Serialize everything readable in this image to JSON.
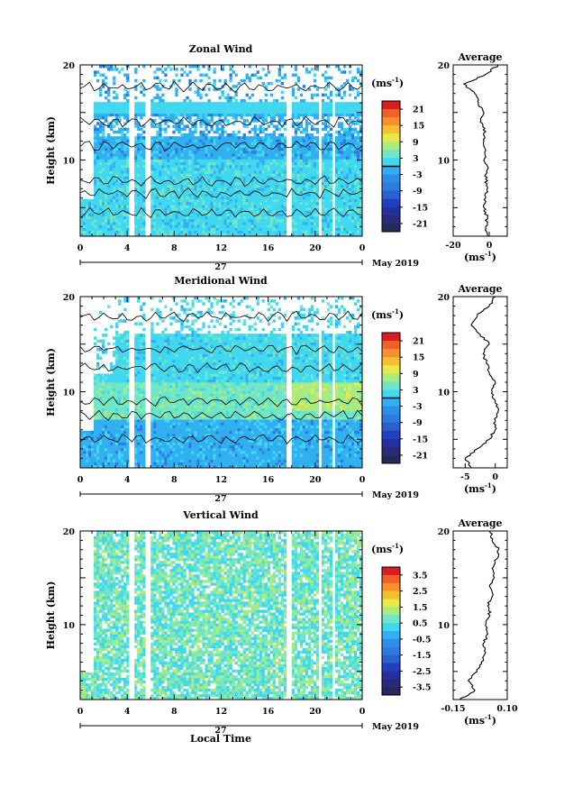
{
  "chart_data": [
    {
      "type": "heatmap",
      "title": "Zonal Wind",
      "ylabel": "Height (km)",
      "xlabel": "",
      "xticks": [
        "0",
        "4",
        "8",
        "12",
        "16",
        "20",
        "0"
      ],
      "yticks": [
        "20",
        "10"
      ],
      "date_label": "27",
      "month_label": "May 2019",
      "xlim": [
        0,
        24
      ],
      "ylim": [
        2,
        20
      ],
      "colorbar": {
        "unit": "(ms",
        "unit_exp": "-1",
        "unit_close": ")",
        "ticks": [
          "21",
          "15",
          "9",
          "3",
          "-3",
          "-9",
          "-15",
          "-21"
        ],
        "range": [
          -24,
          24
        ],
        "zero_line": 0
      },
      "profile": {
        "title": "Average",
        "xlabel": "(ms",
        "xlabel_exp": "-1",
        "xlabel_close": ")",
        "xticks": [
          "-20",
          "0"
        ],
        "yticks": [
          "20",
          "10"
        ],
        "xlim": [
          -20,
          10
        ],
        "ylim": [
          2,
          20
        ],
        "heights": [
          2,
          3,
          4,
          5,
          6,
          7,
          8,
          9,
          10,
          11,
          12,
          13,
          14,
          15,
          16,
          17,
          18,
          19,
          20
        ],
        "values": [
          -1,
          -2,
          -1,
          -3,
          -2,
          -1,
          -2,
          -1,
          -3,
          -2,
          -3,
          -2,
          -5,
          -3,
          -6,
          -8,
          -14,
          -2,
          5
        ]
      }
    },
    {
      "type": "heatmap",
      "title": "Meridional Wind",
      "ylabel": "Height (km)",
      "xlabel": "",
      "xticks": [
        "0",
        "4",
        "8",
        "12",
        "16",
        "20",
        "0"
      ],
      "yticks": [
        "20",
        "10"
      ],
      "date_label": "27",
      "month_label": "May 2019",
      "xlim": [
        0,
        24
      ],
      "ylim": [
        2,
        20
      ],
      "colorbar": {
        "unit": "(ms",
        "unit_exp": "-1",
        "unit_close": ")",
        "ticks": [
          "21",
          "15",
          "9",
          "3",
          "-3",
          "-9",
          "-15",
          "-21"
        ],
        "range": [
          -24,
          24
        ],
        "zero_line": 0
      },
      "profile": {
        "title": "Average",
        "xlabel": "(ms",
        "xlabel_exp": "-1",
        "xlabel_close": ")",
        "xticks": [
          "-5",
          "0"
        ],
        "yticks": [
          "20",
          "10"
        ],
        "xlim": [
          -7,
          2
        ],
        "ylim": [
          2,
          20
        ],
        "heights": [
          2,
          3,
          4,
          5,
          6,
          7,
          8,
          9,
          10,
          11,
          12,
          13,
          14,
          15,
          16,
          17,
          18,
          19,
          20
        ],
        "values": [
          -4,
          -5,
          -3,
          -1,
          0,
          0,
          0.5,
          0,
          -0.5,
          0,
          -1,
          -1.5,
          -2,
          -1,
          -2.5,
          -4,
          -3,
          -1,
          0
        ]
      }
    },
    {
      "type": "heatmap",
      "title": "Vertical Wind",
      "ylabel": "Height (km)",
      "xlabel": "Local Time",
      "xticks": [
        "0",
        "4",
        "8",
        "12",
        "16",
        "20",
        "0"
      ],
      "yticks": [
        "20",
        "10"
      ],
      "date_label": "27",
      "month_label": "May 2019",
      "xlim": [
        0,
        24
      ],
      "ylim": [
        2,
        20
      ],
      "colorbar": {
        "unit": "(ms",
        "unit_exp": "-1",
        "unit_close": ")",
        "ticks": [
          "3.5",
          "2.5",
          "1.5",
          "0.5",
          "-0.5",
          "-1.5",
          "-2.5",
          "-3.5"
        ],
        "range": [
          -4,
          4
        ]
      },
      "profile": {
        "title": "Average",
        "xlabel": "(ms",
        "xlabel_exp": "-1",
        "xlabel_close": ")",
        "xticks": [
          "-0.15",
          "0.10"
        ],
        "yticks": [
          "20",
          "10"
        ],
        "xlim": [
          -0.15,
          0.1
        ],
        "ylim": [
          2,
          20
        ],
        "heights": [
          2,
          3,
          4,
          5,
          6,
          7,
          8,
          9,
          10,
          11,
          12,
          13,
          14,
          15,
          16,
          17,
          18,
          19,
          20
        ],
        "values": [
          -0.12,
          -0.05,
          -0.08,
          -0.04,
          -0.02,
          0,
          -0.01,
          0.01,
          0,
          0.02,
          0.01,
          0.03,
          0.02,
          0.04,
          0.03,
          0.05,
          0.06,
          0.03,
          0.02
        ]
      }
    }
  ],
  "colors": {
    "scale": [
      "#2a2a7a",
      "#2040c0",
      "#2e7be0",
      "#30b0f0",
      "#40d8f0",
      "#6fe6c8",
      "#a8ec80",
      "#e8e84a",
      "#f5b030",
      "#f06028",
      "#d81e1e"
    ]
  }
}
